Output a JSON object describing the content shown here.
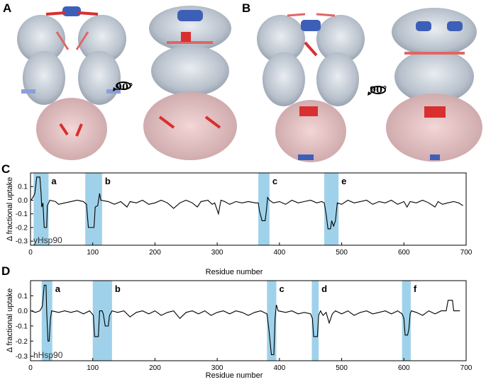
{
  "figure": {
    "panel_letters": [
      "A",
      "B",
      "C",
      "D"
    ],
    "rotation_label": "90°"
  },
  "chart_data": [
    {
      "panel": "C",
      "type": "line",
      "species_label": "yHsp90",
      "xlabel": "Residue number",
      "ylabel": "Δ fractional uptake",
      "xlim": [
        0,
        700
      ],
      "ylim": [
        -0.33,
        0.2
      ],
      "x_ticks": [
        0,
        100,
        200,
        300,
        400,
        500,
        600,
        700
      ],
      "y_ticks": [
        0.1,
        0.0,
        -0.1,
        -0.2,
        -0.3
      ],
      "y_tick_labels": [
        "0.1",
        "0.0",
        "-0.1",
        "-0.2",
        "-0.3"
      ],
      "highlight_regions": [
        {
          "label": "a",
          "x": [
            5,
            29
          ]
        },
        {
          "label": "b",
          "x": [
            88,
            115
          ]
        },
        {
          "label": "c",
          "x": [
            366,
            384
          ]
        },
        {
          "label": "e",
          "x": [
            472,
            495
          ]
        }
      ],
      "series": [
        {
          "values": [
            [
              1,
              0.0
            ],
            [
              5,
              0.03
            ],
            [
              7,
              0.05
            ],
            [
              10,
              0.17
            ],
            [
              15,
              0.17
            ],
            [
              17,
              0.05
            ],
            [
              18,
              -0.05
            ],
            [
              20,
              -0.02
            ],
            [
              22,
              -0.2
            ],
            [
              26,
              -0.2
            ],
            [
              27,
              -0.04
            ],
            [
              31,
              0.0
            ],
            [
              40,
              -0.01
            ],
            [
              45,
              -0.03
            ],
            [
              55,
              -0.02
            ],
            [
              65,
              -0.01
            ],
            [
              75,
              0.0
            ],
            [
              85,
              -0.01
            ],
            [
              90,
              -0.03
            ],
            [
              93,
              -0.2
            ],
            [
              102,
              -0.2
            ],
            [
              104,
              -0.05
            ],
            [
              108,
              -0.04
            ],
            [
              111,
              0.05
            ],
            [
              113,
              0.0
            ],
            [
              125,
              -0.01
            ],
            [
              135,
              -0.03
            ],
            [
              145,
              -0.01
            ],
            [
              155,
              -0.05
            ],
            [
              160,
              -0.01
            ],
            [
              170,
              -0.02
            ],
            [
              180,
              0.0
            ],
            [
              190,
              -0.03
            ],
            [
              200,
              -0.02
            ],
            [
              210,
              0.0
            ],
            [
              220,
              -0.02
            ],
            [
              230,
              -0.06
            ],
            [
              240,
              -0.02
            ],
            [
              250,
              0.0
            ],
            [
              260,
              -0.02
            ],
            [
              268,
              -0.05
            ],
            [
              274,
              -0.01
            ],
            [
              285,
              0.0
            ],
            [
              292,
              -0.03
            ],
            [
              296,
              -0.02
            ],
            [
              302,
              -0.1
            ],
            [
              306,
              0.0
            ],
            [
              312,
              -0.01
            ],
            [
              320,
              -0.03
            ],
            [
              330,
              -0.01
            ],
            [
              340,
              -0.02
            ],
            [
              350,
              -0.01
            ],
            [
              362,
              -0.02
            ],
            [
              366,
              -0.02
            ],
            [
              368,
              -0.08
            ],
            [
              372,
              -0.15
            ],
            [
              377,
              -0.15
            ],
            [
              379,
              -0.08
            ],
            [
              381,
              0.02
            ],
            [
              384,
              0.0
            ],
            [
              390,
              -0.02
            ],
            [
              400,
              -0.01
            ],
            [
              410,
              -0.03
            ],
            [
              420,
              0.0
            ],
            [
              430,
              -0.02
            ],
            [
              440,
              -0.01
            ],
            [
              450,
              0.0
            ],
            [
              460,
              -0.02
            ],
            [
              468,
              -0.01
            ],
            [
              472,
              -0.02
            ],
            [
              475,
              -0.1
            ],
            [
              478,
              -0.21
            ],
            [
              482,
              -0.21
            ],
            [
              484,
              -0.15
            ],
            [
              487,
              -0.19
            ],
            [
              490,
              -0.15
            ],
            [
              493,
              -0.02
            ],
            [
              500,
              -0.03
            ],
            [
              510,
              0.0
            ],
            [
              520,
              -0.02
            ],
            [
              530,
              -0.01
            ],
            [
              540,
              0.0
            ],
            [
              550,
              -0.03
            ],
            [
              560,
              -0.01
            ],
            [
              570,
              -0.02
            ],
            [
              580,
              0.0
            ],
            [
              590,
              -0.03
            ],
            [
              600,
              -0.01
            ],
            [
              605,
              -0.05
            ],
            [
              610,
              -0.01
            ],
            [
              620,
              -0.02
            ],
            [
              630,
              0.0
            ],
            [
              640,
              -0.02
            ],
            [
              650,
              -0.05
            ],
            [
              655,
              -0.01
            ],
            [
              662,
              -0.03
            ],
            [
              670,
              -0.02
            ],
            [
              680,
              -0.01
            ],
            [
              688,
              -0.02
            ],
            [
              695,
              -0.04
            ]
          ]
        }
      ]
    },
    {
      "panel": "D",
      "type": "line",
      "species_label": "hHsp90",
      "xlabel": "Residue number",
      "ylabel": "Δ fractional uptake",
      "xlim": [
        0,
        700
      ],
      "ylim": [
        -0.33,
        0.2
      ],
      "x_ticks": [
        0,
        100,
        200,
        300,
        400,
        500,
        600,
        700
      ],
      "y_ticks": [
        0.1,
        0.0,
        -0.1,
        -0.2,
        -0.3
      ],
      "y_tick_labels": [
        "0.1",
        "0.0",
        "-0.1",
        "-0.2",
        "-0.3"
      ],
      "highlight_regions": [
        {
          "label": "a",
          "x": [
            18,
            35
          ]
        },
        {
          "label": "b",
          "x": [
            100,
            131
          ]
        },
        {
          "label": "c",
          "x": [
            380,
            395
          ]
        },
        {
          "label": "d",
          "x": [
            452,
            463
          ]
        },
        {
          "label": "f",
          "x": [
            597,
            611
          ]
        }
      ],
      "series": [
        {
          "values": [
            [
              1,
              0.0
            ],
            [
              8,
              -0.01
            ],
            [
              15,
              0.0
            ],
            [
              19,
              0.03
            ],
            [
              22,
              0.17
            ],
            [
              25,
              0.17
            ],
            [
              26,
              0.0
            ],
            [
              28,
              -0.2
            ],
            [
              30,
              -0.2
            ],
            [
              32,
              -0.05
            ],
            [
              34,
              0.0
            ],
            [
              45,
              -0.01
            ],
            [
              55,
              0.0
            ],
            [
              65,
              -0.01
            ],
            [
              75,
              0.0
            ],
            [
              85,
              -0.02
            ],
            [
              95,
              0.0
            ],
            [
              101,
              -0.03
            ],
            [
              103,
              -0.17
            ],
            [
              109,
              -0.17
            ],
            [
              111,
              0.0
            ],
            [
              115,
              0.0
            ],
            [
              117,
              -0.02
            ],
            [
              120,
              -0.1
            ],
            [
              125,
              -0.1
            ],
            [
              127,
              -0.03
            ],
            [
              131,
              0.0
            ],
            [
              140,
              -0.01
            ],
            [
              150,
              0.0
            ],
            [
              160,
              -0.04
            ],
            [
              170,
              -0.01
            ],
            [
              180,
              0.0
            ],
            [
              190,
              -0.02
            ],
            [
              200,
              0.0
            ],
            [
              210,
              -0.03
            ],
            [
              220,
              -0.01
            ],
            [
              230,
              0.0
            ],
            [
              240,
              -0.05
            ],
            [
              250,
              -0.01
            ],
            [
              260,
              0.0
            ],
            [
              270,
              -0.02
            ],
            [
              280,
              0.0
            ],
            [
              290,
              -0.03
            ],
            [
              300,
              -0.01
            ],
            [
              310,
              0.0
            ],
            [
              320,
              -0.02
            ],
            [
              330,
              0.0
            ],
            [
              340,
              -0.01
            ],
            [
              350,
              -0.03
            ],
            [
              360,
              -0.01
            ],
            [
              370,
              0.0
            ],
            [
              380,
              -0.02
            ],
            [
              383,
              -0.12
            ],
            [
              387,
              -0.29
            ],
            [
              391,
              -0.29
            ],
            [
              393,
              -0.05
            ],
            [
              395,
              0.04
            ],
            [
              398,
              0.0
            ],
            [
              410,
              -0.01
            ],
            [
              420,
              0.0
            ],
            [
              430,
              -0.02
            ],
            [
              440,
              -0.01
            ],
            [
              450,
              -0.02
            ],
            [
              453,
              -0.05
            ],
            [
              455,
              -0.17
            ],
            [
              461,
              -0.17
            ],
            [
              463,
              -0.03
            ],
            [
              466,
              0.0
            ],
            [
              470,
              -0.03
            ],
            [
              475,
              -0.01
            ],
            [
              480,
              -0.08
            ],
            [
              485,
              -0.02
            ],
            [
              490,
              0.0
            ],
            [
              500,
              -0.02
            ],
            [
              510,
              0.0
            ],
            [
              520,
              -0.03
            ],
            [
              530,
              -0.01
            ],
            [
              540,
              0.0
            ],
            [
              550,
              -0.02
            ],
            [
              560,
              -0.01
            ],
            [
              570,
              0.0
            ],
            [
              580,
              -0.02
            ],
            [
              590,
              0.0
            ],
            [
              597,
              -0.02
            ],
            [
              600,
              -0.05
            ],
            [
              602,
              -0.16
            ],
            [
              606,
              -0.16
            ],
            [
              608,
              -0.12
            ],
            [
              610,
              -0.02
            ],
            [
              612,
              0.0
            ],
            [
              620,
              -0.01
            ],
            [
              630,
              -0.03
            ],
            [
              640,
              0.0
            ],
            [
              650,
              -0.02
            ],
            [
              660,
              0.0
            ],
            [
              668,
              0.0
            ],
            [
              671,
              0.07
            ],
            [
              678,
              0.07
            ],
            [
              680,
              0.0
            ],
            [
              690,
              0.0
            ]
          ]
        }
      ]
    }
  ]
}
